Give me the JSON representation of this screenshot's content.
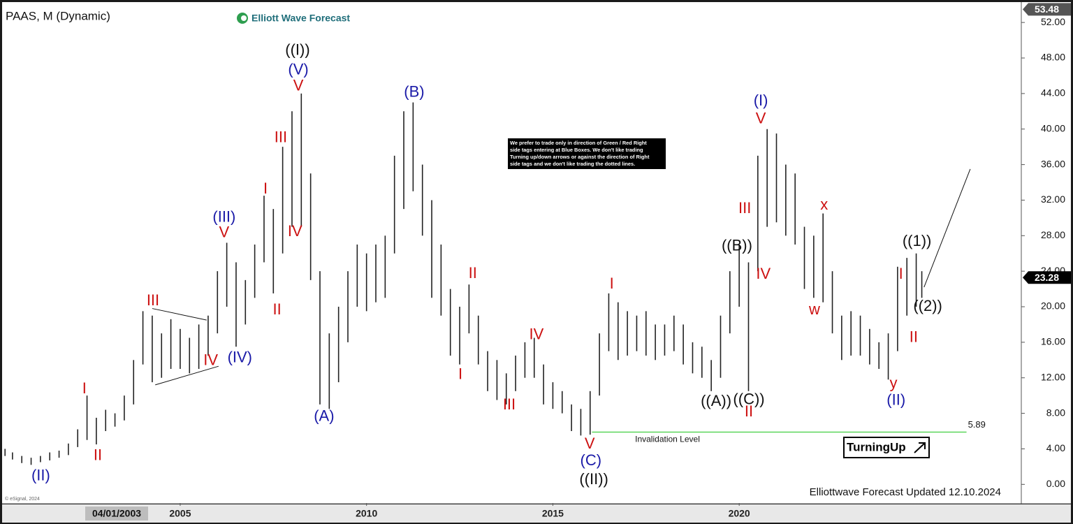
{
  "chart_data": {
    "type": "hilo",
    "title": "PAAS, M (Dynamic)",
    "brand": "Elliott Wave Forecast",
    "footer": "Elliottwave Forecast Updated 12.10.2024",
    "copyright": "© eSignal, 2024",
    "badge": "TurningUp",
    "cursor_label": "04/01/2003",
    "note": [
      "We prefer to trade only in direction of Green / Red Right",
      "side tags entering at Blue Boxes. We don't like trading",
      "Turning up/down arrows or against the direction of Right",
      "side tags and we don't like trading the dotted lines."
    ],
    "xlim": [
      2000.24,
      2027.57
    ],
    "xticks": [
      2005,
      2010,
      2015,
      2020
    ],
    "ylim": [
      -2.1,
      53.9
    ],
    "yticks": [
      {
        "value": 0,
        "label": "0.00"
      },
      {
        "value": 4,
        "label": "4.00"
      },
      {
        "value": 8,
        "label": "8.00"
      },
      {
        "value": 12,
        "label": "12.00"
      },
      {
        "value": 16,
        "label": "16.00"
      },
      {
        "value": 20,
        "label": "20.00"
      },
      {
        "value": 24,
        "label": "24.00"
      },
      {
        "value": 28,
        "label": "28.00"
      },
      {
        "value": 32,
        "label": "32.00"
      },
      {
        "value": 36,
        "label": "36.00"
      },
      {
        "value": 40,
        "label": "40.00"
      },
      {
        "value": 44,
        "label": "44.00"
      },
      {
        "value": 48,
        "label": "48.00"
      },
      {
        "value": 52,
        "label": "52.00"
      }
    ],
    "price_tags": [
      {
        "value": 53.48,
        "label": "53.48",
        "color": "#555555"
      },
      {
        "value": 23.28,
        "label": "23.28",
        "color": "#000000"
      }
    ],
    "color": "#222222",
    "x": [
      2000.3,
      2000.5,
      2000.75,
      2001.0,
      2001.25,
      2001.5,
      2001.75,
      2002.0,
      2002.25,
      2002.5,
      2002.75,
      2003.0,
      2003.25,
      2003.5,
      2003.75,
      2004.0,
      2004.25,
      2004.5,
      2004.75,
      2005.0,
      2005.25,
      2005.5,
      2005.75,
      2006.0,
      2006.25,
      2006.5,
      2006.75,
      2007.0,
      2007.25,
      2007.5,
      2007.75,
      2008.0,
      2008.25,
      2008.5,
      2008.75,
      2009.0,
      2009.25,
      2009.5,
      2009.75,
      2010.0,
      2010.25,
      2010.5,
      2010.75,
      2011.0,
      2011.25,
      2011.5,
      2011.75,
      2012.0,
      2012.25,
      2012.5,
      2012.75,
      2013.0,
      2013.25,
      2013.5,
      2013.75,
      2014.0,
      2014.25,
      2014.5,
      2014.75,
      2015.0,
      2015.25,
      2015.5,
      2015.75,
      2016.0,
      2016.25,
      2016.5,
      2016.75,
      2017.0,
      2017.25,
      2017.5,
      2017.75,
      2018.0,
      2018.25,
      2018.5,
      2018.75,
      2019.0,
      2019.25,
      2019.5,
      2019.75,
      2020.0,
      2020.25,
      2020.5,
      2020.75,
      2021.0,
      2021.25,
      2021.5,
      2021.75,
      2022.0,
      2022.25,
      2022.5,
      2022.75,
      2023.0,
      2023.25,
      2023.5,
      2023.75,
      2024.0,
      2024.25,
      2024.5,
      2024.75,
      2024.9
    ],
    "high": [
      4.0,
      3.6,
      3.2,
      3.0,
      3.2,
      3.6,
      3.8,
      4.6,
      6.2,
      10.0,
      7.5,
      8.4,
      8.0,
      10.0,
      14.0,
      19.5,
      19.0,
      17.0,
      18.6,
      17.5,
      16.5,
      18.0,
      19.0,
      24.0,
      27.2,
      25.0,
      23.0,
      27.0,
      32.5,
      31.0,
      38.0,
      42.0,
      44.0,
      35.0,
      24.0,
      17.0,
      20.0,
      24.0,
      27.0,
      26.0,
      27.0,
      28.0,
      37.0,
      42.0,
      43.0,
      36.0,
      32.0,
      27.0,
      22.0,
      20.0,
      22.5,
      19.0,
      15.0,
      14.0,
      12.5,
      14.5,
      16.0,
      16.5,
      13.5,
      11.5,
      10.5,
      9.0,
      8.5,
      10.5,
      17.0,
      21.5,
      20.5,
      19.5,
      19.0,
      19.5,
      18.0,
      18.0,
      19.0,
      18.0,
      16.0,
      15.5,
      14.0,
      19.0,
      24.0,
      27.0,
      25.0,
      37.0,
      40.0,
      39.5,
      36.0,
      35.0,
      29.0,
      28.0,
      30.5,
      24.0,
      19.0,
      19.5,
      19.0,
      17.5,
      16.0,
      17.0,
      24.5,
      25.5,
      26.0,
      24.0
    ],
    "low": [
      3.2,
      2.8,
      2.4,
      2.2,
      2.5,
      2.7,
      3.0,
      3.3,
      4.2,
      5.0,
      4.5,
      6.0,
      6.5,
      7.2,
      9.0,
      13.5,
      11.5,
      12.0,
      13.0,
      13.0,
      12.5,
      13.0,
      14.5,
      17.0,
      20.0,
      15.5,
      18.0,
      21.0,
      25.0,
      21.5,
      26.0,
      29.0,
      29.0,
      23.0,
      9.0,
      8.5,
      11.5,
      16.0,
      20.0,
      19.5,
      20.5,
      21.0,
      26.0,
      31.0,
      33.0,
      28.0,
      21.0,
      19.0,
      14.5,
      13.5,
      17.0,
      13.5,
      10.5,
      9.5,
      9.0,
      10.5,
      12.0,
      12.0,
      9.0,
      8.5,
      8.0,
      6.0,
      5.5,
      5.6,
      10.0,
      15.0,
      14.0,
      14.5,
      15.0,
      14.5,
      14.0,
      14.5,
      15.0,
      13.5,
      12.5,
      12.0,
      10.5,
      12.0,
      17.0,
      20.0,
      10.5,
      24.0,
      29.0,
      29.5,
      28.0,
      27.0,
      22.0,
      21.0,
      20.5,
      17.0,
      14.0,
      14.5,
      14.5,
      13.5,
      13.0,
      11.8,
      15.0,
      19.0,
      20.0,
      21.0
    ],
    "wave_labels": [
      {
        "color": "#cc1111",
        "labels": [
          {
            "text": "V",
            "x": 2008.17,
            "y": 44.8
          },
          {
            "text": "III",
            "x": 2007.7,
            "y": 39.0
          },
          {
            "text": "I",
            "x": 2007.29,
            "y": 33.2
          },
          {
            "text": "IV",
            "x": 2008.08,
            "y": 28.4
          },
          {
            "text": "II",
            "x": 2007.6,
            "y": 19.6
          },
          {
            "text": "V",
            "x": 2006.18,
            "y": 28.3
          },
          {
            "text": "III",
            "x": 2004.27,
            "y": 20.6
          },
          {
            "text": "IV",
            "x": 2005.82,
            "y": 13.9
          },
          {
            "text": "I",
            "x": 2002.43,
            "y": 10.7
          },
          {
            "text": "II",
            "x": 2002.79,
            "y": 3.2
          },
          {
            "text": "II",
            "x": 2012.85,
            "y": 23.7
          },
          {
            "text": "I",
            "x": 2012.52,
            "y": 12.3
          },
          {
            "text": "IV",
            "x": 2014.56,
            "y": 16.8
          },
          {
            "text": "III",
            "x": 2013.83,
            "y": 8.9
          },
          {
            "text": "V",
            "x": 2015.99,
            "y": 4.5
          },
          {
            "text": "I",
            "x": 2016.58,
            "y": 22.5
          },
          {
            "text": "II",
            "x": 2020.26,
            "y": 8.1
          },
          {
            "text": "III",
            "x": 2020.15,
            "y": 31.0
          },
          {
            "text": "IV",
            "x": 2020.65,
            "y": 23.6
          },
          {
            "text": "V",
            "x": 2020.58,
            "y": 41.1
          },
          {
            "text": "x",
            "x": 2022.28,
            "y": 31.4
          },
          {
            "text": "w",
            "x": 2022.02,
            "y": 19.6
          },
          {
            "text": "I",
            "x": 2024.34,
            "y": 23.6
          },
          {
            "text": "II",
            "x": 2024.68,
            "y": 16.5
          },
          {
            "text": "y",
            "x": 2024.14,
            "y": 11.3
          }
        ]
      },
      {
        "color": "#1a1aa8",
        "labels": [
          {
            "text": "(V)",
            "x": 2008.17,
            "y": 46.6
          },
          {
            "text": "(B)",
            "x": 2011.28,
            "y": 44.1
          },
          {
            "text": "(III)",
            "x": 2006.18,
            "y": 30.0
          },
          {
            "text": "(IV)",
            "x": 2006.6,
            "y": 14.2
          },
          {
            "text": "(II)",
            "x": 2001.26,
            "y": 0.9
          },
          {
            "text": "(A)",
            "x": 2008.86,
            "y": 7.6
          },
          {
            "text": "(C)",
            "x": 2016.02,
            "y": 2.6
          },
          {
            "text": "(I)",
            "x": 2020.58,
            "y": 43.1
          },
          {
            "text": "(II)",
            "x": 2024.21,
            "y": 9.4
          }
        ]
      },
      {
        "color": "#111111",
        "labels": [
          {
            "text": "((I))",
            "x": 2008.15,
            "y": 48.8
          },
          {
            "text": "((II))",
            "x": 2016.1,
            "y": 0.5
          },
          {
            "text": "((A))",
            "x": 2019.38,
            "y": 9.3
          },
          {
            "text": "((B))",
            "x": 2019.94,
            "y": 26.8
          },
          {
            "text": "((C))",
            "x": 2020.26,
            "y": 9.5
          },
          {
            "text": "((1))",
            "x": 2024.77,
            "y": 27.3
          },
          {
            "text": "((2))",
            "x": 2025.06,
            "y": 20.0
          }
        ]
      }
    ],
    "trendlines": [
      {
        "x": [
          2004.25,
          2005.71
        ],
        "y": [
          19.8,
          18.5
        ]
      },
      {
        "x": [
          2004.33,
          2006.03
        ],
        "y": [
          11.2,
          13.3
        ]
      },
      {
        "x": [
          2024.96,
          2026.2
        ],
        "y": [
          22.2,
          35.5
        ]
      }
    ],
    "invalidation": {
      "value": 5.89,
      "x": [
        2016.05,
        2026.1
      ],
      "label": "Invalidation Level",
      "value_label": "5.89",
      "color": "#33cc33"
    }
  }
}
